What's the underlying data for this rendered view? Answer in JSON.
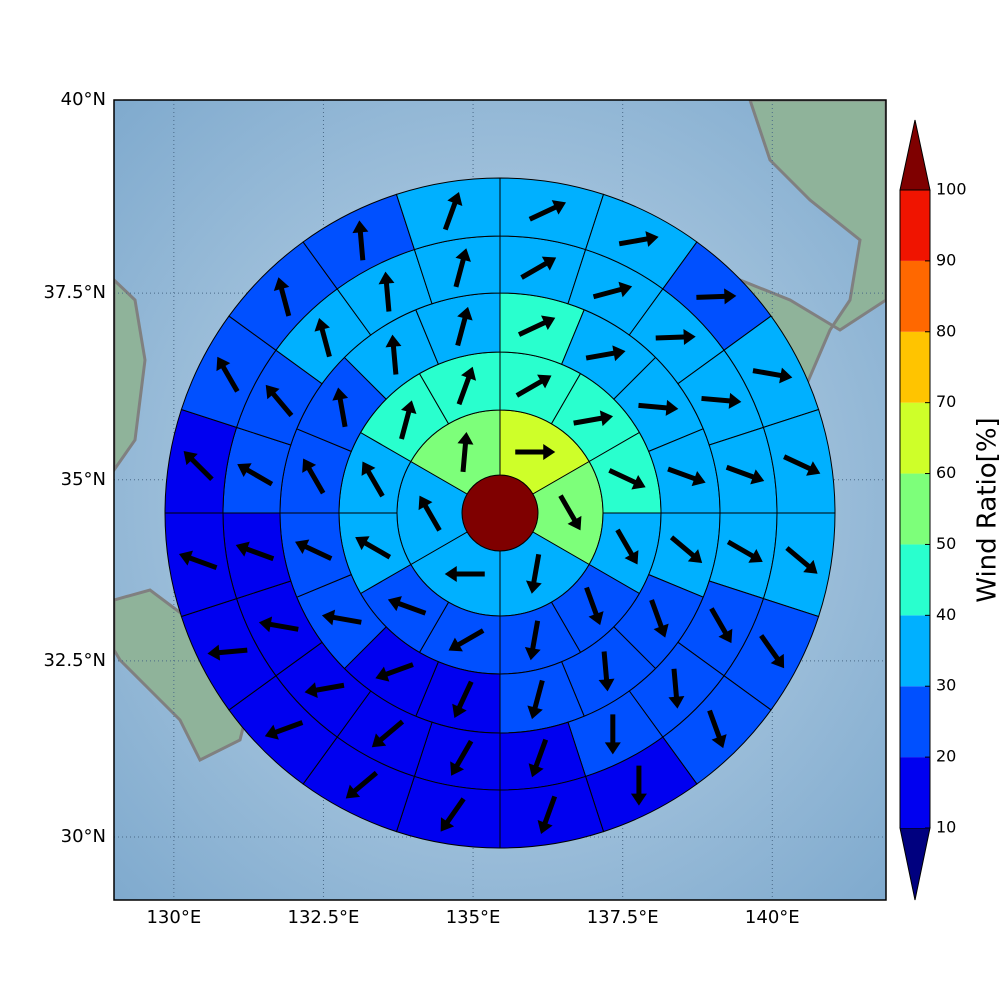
{
  "map": {
    "xlim": [
      129.0,
      141.9
    ],
    "ylim": [
      29.09,
      40
    ],
    "xticks": [
      {
        "value": 130,
        "label": "130°E"
      },
      {
        "value": 132.5,
        "label": "132.5°E"
      },
      {
        "value": 135,
        "label": "135°E"
      },
      {
        "value": 137.5,
        "label": "137.5°E"
      },
      {
        "value": 140,
        "label": "140°E"
      }
    ],
    "yticks": [
      {
        "value": 30,
        "label": "30°N"
      },
      {
        "value": 32.5,
        "label": "32.5°N"
      },
      {
        "value": 35,
        "label": "35°N"
      },
      {
        "value": 37.5,
        "label": "37.5°N"
      },
      {
        "value": 40,
        "label": "40°N"
      }
    ],
    "grid": true,
    "colorbar": {
      "label": "Wind Ratio[%]",
      "ticks": [
        10,
        20,
        30,
        40,
        50,
        60,
        70,
        80,
        90,
        100
      ],
      "colors": [
        "#00007f",
        "#0000f0",
        "#0050ff",
        "#00b0ff",
        "#29ffce",
        "#7dff7a",
        "#ceff29",
        "#ffc400",
        "#ff6800",
        "#f01400",
        "#7f0000"
      ]
    },
    "center_value": 105,
    "rings": [
      {
        "values": [
          65,
          55,
          35,
          35,
          35,
          55
        ],
        "directions": [
          90,
          150,
          190,
          270,
          330,
          5
        ]
      },
      {
        "values": [
          45,
          45,
          45,
          35,
          25,
          25,
          25,
          25,
          35,
          35,
          45,
          45
        ],
        "directions": [
          60,
          80,
          115,
          150,
          160,
          190,
          240,
          290,
          300,
          330,
          15,
          20
        ]
      },
      {
        "values": [
          45,
          35,
          35,
          35,
          35,
          25,
          25,
          25,
          15,
          15,
          25,
          25,
          25,
          25,
          35,
          35
        ],
        "directions": [
          65,
          80,
          95,
          110,
          130,
          160,
          175,
          195,
          205,
          250,
          280,
          295,
          330,
          350,
          355,
          15
        ]
      },
      {
        "values": [
          35,
          35,
          35,
          35,
          35,
          35,
          25,
          25,
          25,
          15,
          15,
          15,
          15,
          15,
          15,
          25,
          25,
          35,
          35,
          35
        ],
        "directions": [
          60,
          75,
          88,
          95,
          110,
          120,
          150,
          175,
          180,
          200,
          210,
          230,
          260,
          280,
          290,
          300,
          320,
          345,
          355,
          15
        ]
      },
      {
        "values": [
          35,
          35,
          25,
          35,
          35,
          35,
          25,
          25,
          15,
          15,
          15,
          15,
          15,
          15,
          15,
          15,
          25,
          25,
          25,
          35
        ],
        "directions": [
          65,
          80,
          88,
          100,
          115,
          130,
          145,
          160,
          180,
          200,
          215,
          230,
          250,
          265,
          290,
          315,
          330,
          345,
          355,
          20
        ]
      }
    ]
  }
}
